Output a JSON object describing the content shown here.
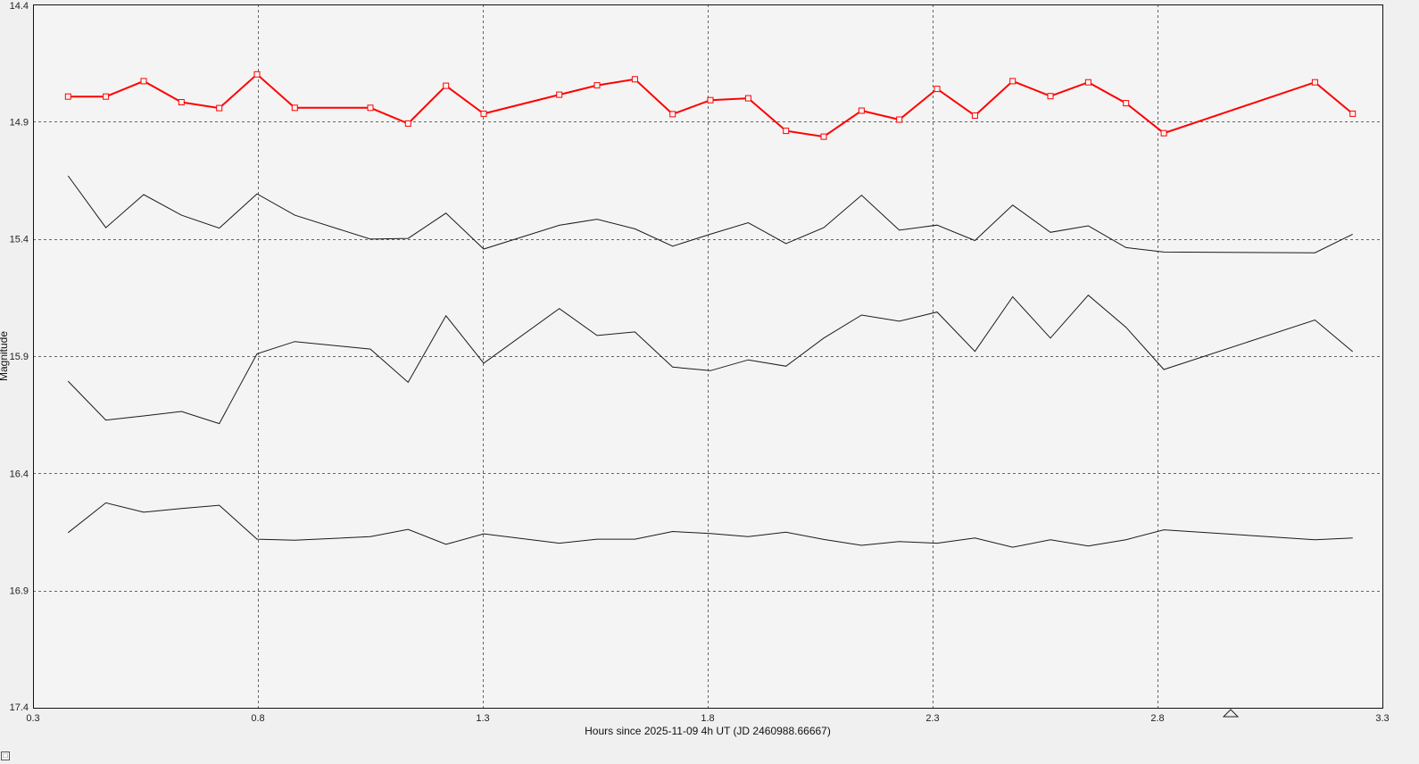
{
  "chart_data": {
    "type": "line",
    "xlabel": "Hours since 2025-11-09 4h UT (JD 2460988.66667)",
    "ylabel": "Magnitude",
    "xlim": [
      0.3,
      3.3
    ],
    "ylim": [
      14.4,
      17.4
    ],
    "y_inverted": true,
    "grid": true,
    "x_ticks": [
      "0.3",
      "0.8",
      "1.3",
      "1.8",
      "2.3",
      "2.8",
      "3.3"
    ],
    "y_ticks": [
      "14.4",
      "14.9",
      "15.4",
      "15.9",
      "16.4",
      "16.9",
      "17.4"
    ],
    "x": [
      0.378,
      0.462,
      0.546,
      0.63,
      0.714,
      0.798,
      0.882,
      1.05,
      1.134,
      1.218,
      1.302,
      1.47,
      1.554,
      1.638,
      1.722,
      1.806,
      1.89,
      1.974,
      2.058,
      2.142,
      2.226,
      2.31,
      2.394,
      2.478,
      2.562,
      2.646,
      2.73,
      2.814,
      3.15,
      3.234
    ],
    "series": [
      {
        "color": "#ff0000",
        "markers": true,
        "values": [
          14.793,
          14.793,
          14.727,
          14.817,
          14.842,
          14.698,
          14.841,
          14.841,
          14.908,
          14.747,
          14.866,
          14.785,
          14.745,
          14.719,
          14.868,
          14.808,
          14.8,
          14.939,
          14.964,
          14.853,
          14.891,
          14.76,
          14.874,
          14.727,
          14.791,
          14.732,
          14.821,
          14.949,
          14.732,
          14.866
        ]
      },
      {
        "color": "#1a1a1a",
        "markers": false,
        "values": [
          15.131,
          15.352,
          15.211,
          15.299,
          15.354,
          15.208,
          15.299,
          15.401,
          15.398,
          15.29,
          15.443,
          15.342,
          15.316,
          15.357,
          15.431,
          15.38,
          15.331,
          15.42,
          15.352,
          15.214,
          15.363,
          15.341,
          15.407,
          15.256,
          15.372,
          15.344,
          15.437,
          15.456,
          15.459,
          15.38
        ]
      },
      {
        "color": "#1a1a1a",
        "markers": false,
        "values": [
          16.007,
          16.173,
          16.155,
          16.136,
          16.188,
          15.89,
          15.838,
          15.87,
          16.012,
          15.728,
          15.93,
          15.697,
          15.812,
          15.797,
          15.947,
          15.962,
          15.916,
          15.943,
          15.823,
          15.725,
          15.751,
          15.712,
          15.88,
          15.647,
          15.823,
          15.64,
          15.777,
          15.957,
          15.746,
          15.881
        ]
      },
      {
        "color": "#1a1a1a",
        "markers": false,
        "values": [
          16.653,
          16.526,
          16.566,
          16.55,
          16.536,
          16.681,
          16.685,
          16.67,
          16.639,
          16.703,
          16.658,
          16.698,
          16.681,
          16.681,
          16.648,
          16.657,
          16.67,
          16.651,
          16.682,
          16.707,
          16.691,
          16.698,
          16.676,
          16.715,
          16.683,
          16.71,
          16.683,
          16.641,
          16.683,
          16.676
        ]
      }
    ]
  }
}
